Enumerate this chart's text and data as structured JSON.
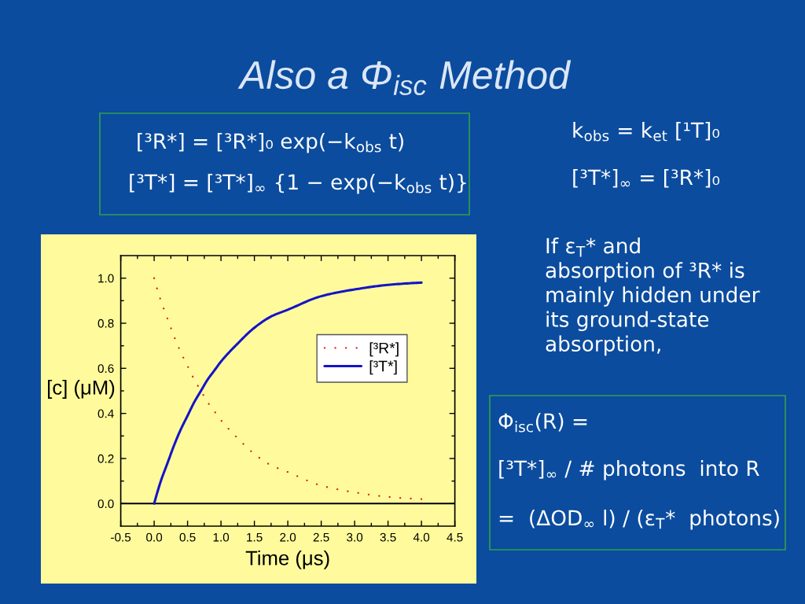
{
  "chart_data": {
    "type": "line",
    "title": "Also a Φ$_{isc}$ Method",
    "xlabel": "Time (μs)",
    "ylabel": "[c] (μM)",
    "x": [
      0,
      0.1,
      0.2,
      0.3,
      0.4,
      0.5,
      0.6,
      0.7,
      0.8,
      0.9,
      1.0,
      1.25,
      1.5,
      1.75,
      2.0,
      2.5,
      3.0,
      3.5,
      4.0
    ],
    "series": [
      {
        "name": "[³R*]",
        "color": "#e02020",
        "line_style": "dotted",
        "values": [
          1.0,
          0.9,
          0.82,
          0.74,
          0.67,
          0.61,
          0.55,
          0.5,
          0.45,
          0.41,
          0.37,
          0.29,
          0.22,
          0.17,
          0.14,
          0.08,
          0.05,
          0.03,
          0.02
        ]
      },
      {
        "name": "[³T*]",
        "color": "#1414c8",
        "line_style": "solid",
        "values": [
          0.0,
          0.1,
          0.18,
          0.26,
          0.33,
          0.39,
          0.45,
          0.5,
          0.55,
          0.59,
          0.63,
          0.71,
          0.78,
          0.83,
          0.86,
          0.92,
          0.95,
          0.97,
          0.98
        ]
      }
    ],
    "xlim": [
      -0.5,
      4.5
    ],
    "xticks": [
      -0.5,
      {
        "value": 0,
        "label": "0.0"
      },
      0.5,
      {
        "value": 1,
        "label": "1.0"
      },
      1.5,
      {
        "value": 2,
        "label": "2.0"
      },
      2.5,
      {
        "value": 3,
        "label": "3.0"
      },
      3.5,
      {
        "value": 4,
        "label": "4.0"
      },
      4.5
    ],
    "ylim": [
      -0.1,
      1.1
    ],
    "yticks": [
      {
        "value": 0,
        "label": "0.0"
      },
      0.2,
      0.4,
      0.6,
      0.8,
      {
        "value": 1,
        "label": "1.0"
      }
    ],
    "ref_lines": [
      {
        "axis": "y",
        "value": 0,
        "color": "#000000",
        "line_style": "solid"
      }
    ],
    "legend": "center right",
    "annotations": [
      "[³R*] = [³R*]₀ exp(−k$_{obs}$ t)",
      "[³T*] = [³T*]$_{∞}$ {1 − exp(−k$_{obs}$ t)}",
      "k$_{obs}$ = k$_{et}$ [¹T]₀",
      "[³T*]$_{∞}$ = [³R*]₀",
      "If ε$_{T}$* and\nabsorption of ³R* is\nmainly hidden under\nits ground-state\nabsorption,",
      "Φ$_{isc}$(R) =",
      "[³T*]$_{∞}$ / # photons  into R",
      "=  (ΔOD$_{∞}$ l) / (ε$_{T}$*  photons)"
    ]
  }
}
